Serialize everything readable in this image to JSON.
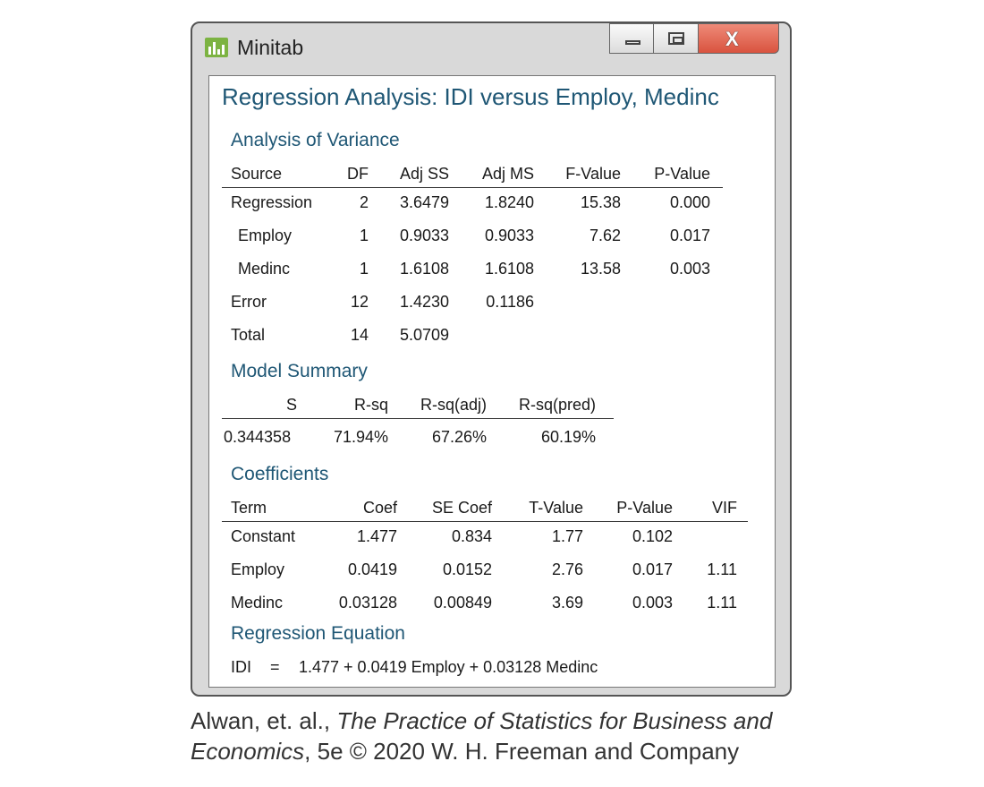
{
  "app": {
    "title": "Minitab",
    "icon": "minitab-bar-chart-icon",
    "icon_color": "#7cb342",
    "close_color": "#d9533f"
  },
  "window_controls": {
    "minimize": "minimize-icon",
    "maximize": "maximize-icon",
    "close_glyph": "X"
  },
  "heading": "Regression Analysis: IDI versus Employ, Medinc",
  "heading_color": "#1f5775",
  "anova": {
    "title": "Analysis of Variance",
    "headers": [
      "Source",
      "DF",
      "Adj SS",
      "Adj MS",
      "F-Value",
      "P-Value"
    ],
    "rows": [
      [
        "Regression",
        "2",
        "3.6479",
        "1.8240",
        "15.38",
        "0.000"
      ],
      [
        "Employ",
        "1",
        "0.9033",
        "0.9033",
        "7.62",
        "0.017"
      ],
      [
        "Medinc",
        "1",
        "1.6108",
        "1.6108",
        "13.58",
        "0.003"
      ],
      [
        "Error",
        "12",
        "1.4230",
        "0.1186",
        "",
        ""
      ],
      [
        "Total",
        "14",
        "5.0709",
        "",
        "",
        ""
      ]
    ]
  },
  "model_summary": {
    "title": "Model Summary",
    "headers": [
      "S",
      "R-sq",
      "R-sq(adj)",
      "R-sq(pred)"
    ],
    "values": [
      "0.344358",
      "71.94%",
      "67.26%",
      "60.19%"
    ]
  },
  "coefficients": {
    "title": "Coefficients",
    "headers": [
      "Term",
      "Coef",
      "SE Coef",
      "T-Value",
      "P-Value",
      "VIF"
    ],
    "rows": [
      [
        "Constant",
        "1.477",
        "0.834",
        "1.77",
        "0.102",
        ""
      ],
      [
        "Employ",
        "0.0419",
        "0.0152",
        "2.76",
        "0.017",
        "1.11"
      ],
      [
        "Medinc",
        "0.03128",
        "0.00849",
        "3.69",
        "0.003",
        "1.11"
      ]
    ]
  },
  "equation": {
    "title": "Regression Equation",
    "lhs": "IDI",
    "eq": "=",
    "rhs": "1.477 + 0.0419 Employ + 0.03128 Medinc"
  },
  "caption": {
    "authors": "Alwan, et. al., ",
    "book": "The Practice of Statistics for Business and",
    "book2": "Economics",
    "rest": ", 5e © 2020 W. H. Freeman and Company"
  }
}
